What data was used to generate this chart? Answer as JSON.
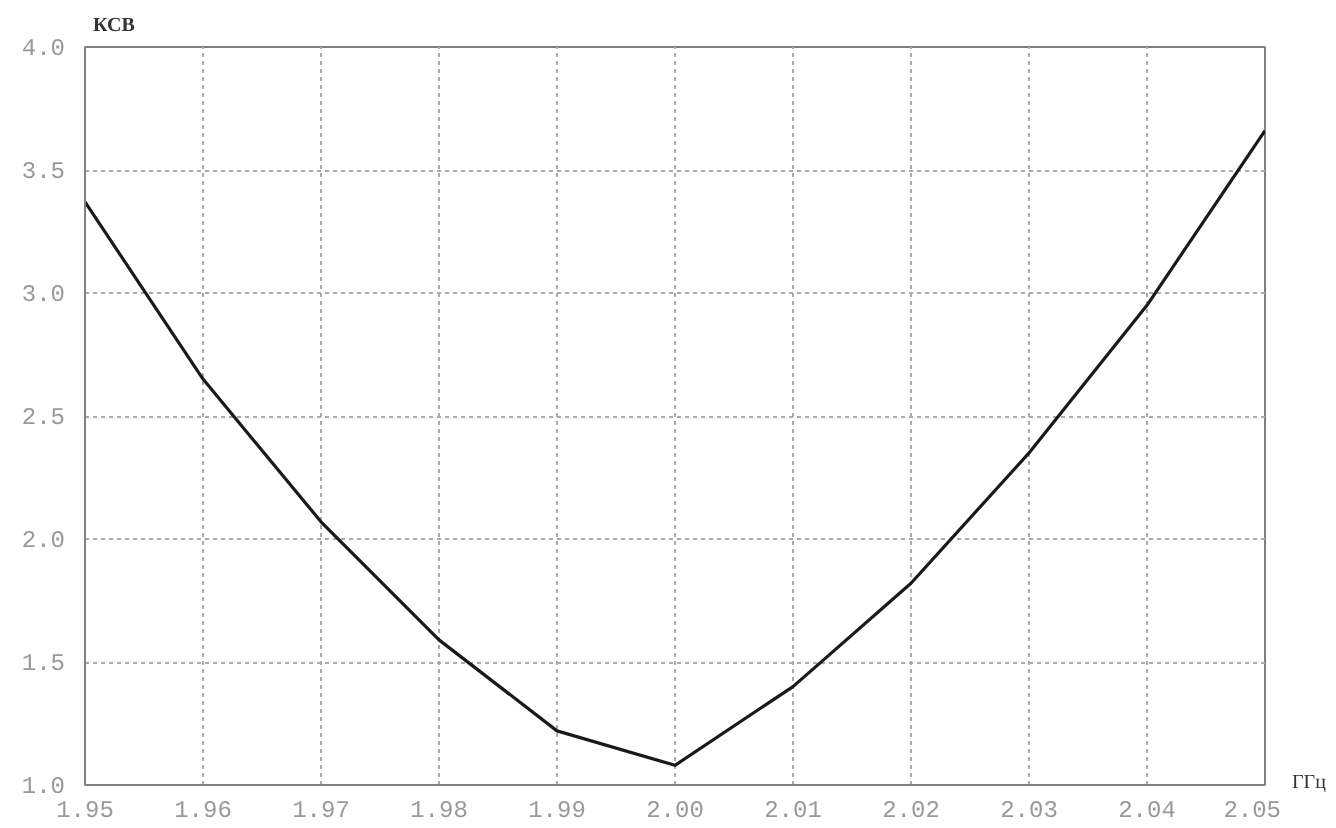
{
  "chart_data": {
    "type": "line",
    "xlabel": "ГГц",
    "ylabel": "КСВ",
    "x": [
      1.95,
      1.96,
      1.97,
      1.98,
      1.99,
      2.0,
      2.01,
      2.02,
      2.03,
      2.04,
      2.05
    ],
    "series": [
      {
        "color": "#1a1a1a",
        "values": [
          3.37,
          2.65,
          2.07,
          1.59,
          1.22,
          1.08,
          1.4,
          1.82,
          2.35,
          2.95,
          3.66
        ]
      }
    ],
    "xlim": [
      1.95,
      2.05
    ],
    "ylim": [
      1.0,
      4.0
    ],
    "xticks": [
      {
        "value": 1.95,
        "label": "1.95"
      },
      {
        "value": 1.96,
        "label": "1.96"
      },
      {
        "value": 1.97,
        "label": "1.97"
      },
      {
        "value": 1.98,
        "label": "1.98"
      },
      {
        "value": 1.99,
        "label": "1.99"
      },
      {
        "value": 2.0,
        "label": "2.00"
      },
      {
        "value": 2.01,
        "label": "2.01"
      },
      {
        "value": 2.02,
        "label": "2.02"
      },
      {
        "value": 2.03,
        "label": "2.03"
      },
      {
        "value": 2.04,
        "label": "2.04"
      },
      {
        "value": 2.05,
        "label": "2.05"
      }
    ],
    "yticks": [
      {
        "value": 1.0,
        "label": "1.0"
      },
      {
        "value": 1.5,
        "label": "1.5"
      },
      {
        "value": 2.0,
        "label": "2.0"
      },
      {
        "value": 2.5,
        "label": "2.5"
      },
      {
        "value": 3.0,
        "label": "3.0"
      },
      {
        "value": 3.5,
        "label": "3.5"
      },
      {
        "value": 4.0,
        "label": "4.0"
      }
    ],
    "grid": true,
    "marker": "none",
    "line_style": "solid"
  }
}
